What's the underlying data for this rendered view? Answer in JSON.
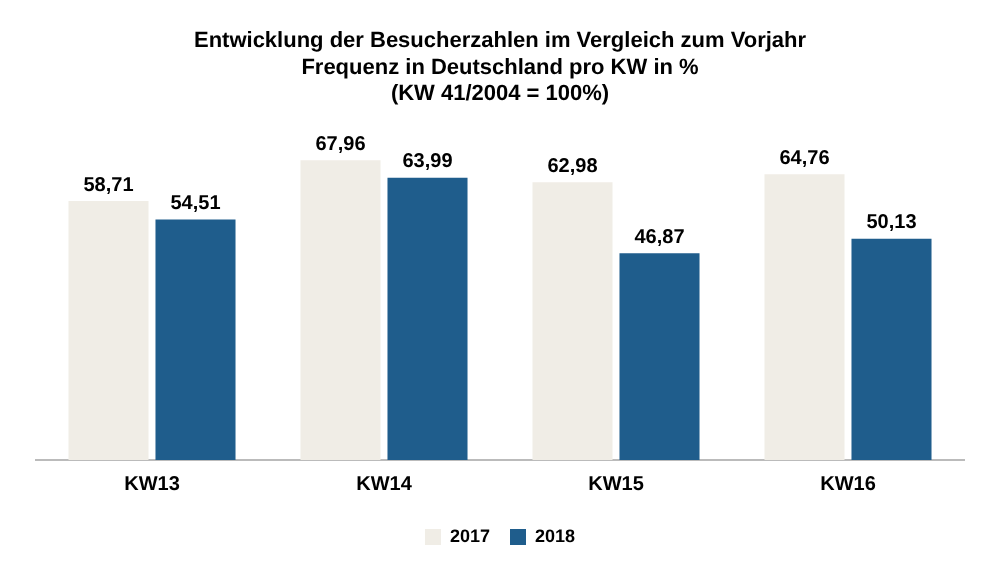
{
  "chart_data": {
    "type": "bar",
    "title": [
      "Entwicklung der Besucherzahlen im Vergleich zum Vorjahr",
      "Frequenz in Deutschland pro KW in %",
      "(KW 41/2004 = 100%)"
    ],
    "categories": [
      "KW13",
      "KW14",
      "KW15",
      "KW16"
    ],
    "series": [
      {
        "name": "2017",
        "color": "#f0ede6",
        "values": [
          58.71,
          67.96,
          62.98,
          64.76
        ],
        "value_labels": [
          "58,71",
          "67,96",
          "62,98",
          "64,76"
        ]
      },
      {
        "name": "2018",
        "color": "#1f5d8c",
        "values": [
          54.51,
          63.99,
          46.87,
          50.13
        ],
        "value_labels": [
          "54,51",
          "63,99",
          "46,87",
          "50,13"
        ]
      }
    ],
    "grid": false,
    "legend": "bottom"
  }
}
